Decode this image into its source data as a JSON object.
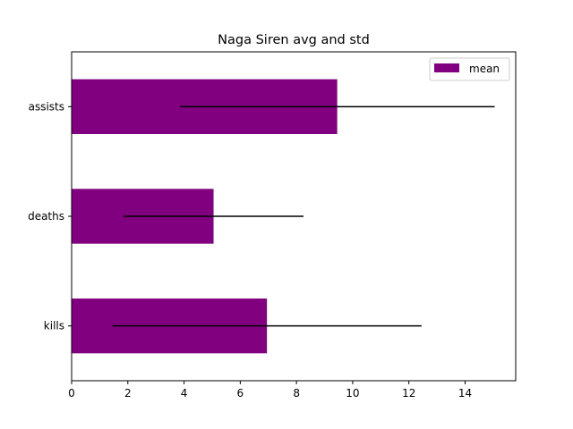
{
  "chart_data": {
    "type": "bar",
    "orientation": "horizontal",
    "title": "Naga Siren avg and std",
    "xlabel": "",
    "ylabel": "",
    "categories": [
      "kills",
      "deaths",
      "assists"
    ],
    "series": [
      {
        "name": "mean",
        "values": [
          6.95,
          5.05,
          9.45
        ],
        "std": [
          5.5,
          3.2,
          5.6
        ],
        "color": "#800080"
      }
    ],
    "error_bar_color": "#000000",
    "xlim": [
      0,
      15.8
    ],
    "xticks": [
      0,
      2,
      4,
      6,
      8,
      10,
      12,
      14
    ],
    "grid": false,
    "legend_position": "top-right"
  }
}
